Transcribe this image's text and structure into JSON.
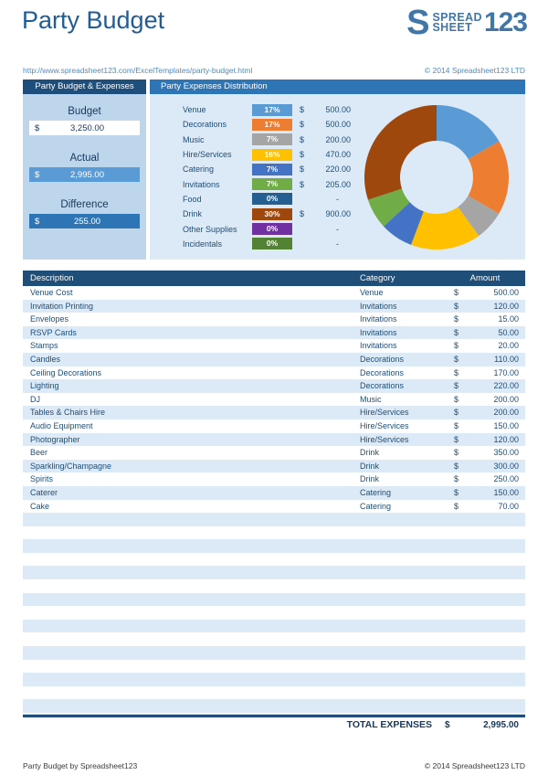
{
  "header": {
    "title": "Party Budget",
    "logo": {
      "s": "S",
      "line1": "SPREAD",
      "line2": "SHEET",
      "numbers": "123"
    }
  },
  "urlbar": {
    "url": "http://www.spreadsheet123.com/ExcelTemplates/party-budget.html",
    "copyright": "© 2014 Spreadsheet123 LTD"
  },
  "summary": {
    "tab_label": "Party Budget & Expenses",
    "budget": {
      "label": "Budget",
      "currency": "$",
      "value": "3,250.00"
    },
    "actual": {
      "label": "Actual",
      "currency": "$",
      "value": "2,995.00"
    },
    "difference": {
      "label": "Difference",
      "currency": "$",
      "value": "255.00"
    }
  },
  "distribution": {
    "tab_label": "Party Expenses Distribution",
    "rows": [
      {
        "label": "Venue",
        "percent": "17%",
        "color": "#5B9BD5",
        "currency": "$",
        "amount": "500.00"
      },
      {
        "label": "Decorations",
        "percent": "17%",
        "color": "#ED7D31",
        "currency": "$",
        "amount": "500.00"
      },
      {
        "label": "Music",
        "percent": "7%",
        "color": "#A5A5A5",
        "currency": "$",
        "amount": "200.00"
      },
      {
        "label": "Hire/Services",
        "percent": "16%",
        "color": "#FFC000",
        "currency": "$",
        "amount": "470.00"
      },
      {
        "label": "Catering",
        "percent": "7%",
        "color": "#4472C4",
        "currency": "$",
        "amount": "220.00"
      },
      {
        "label": "Invitations",
        "percent": "7%",
        "color": "#70AD47",
        "currency": "$",
        "amount": "205.00"
      },
      {
        "label": "Food",
        "percent": "0%",
        "color": "#255E91",
        "currency": "",
        "amount": "-"
      },
      {
        "label": "Drink",
        "percent": "30%",
        "color": "#9E480E",
        "currency": "$",
        "amount": "900.00"
      },
      {
        "label": "Other Supplies",
        "percent": "0%",
        "color": "#7030A0",
        "currency": "",
        "amount": "-"
      },
      {
        "label": "Incidentals",
        "percent": "0%",
        "color": "#548235",
        "currency": "",
        "amount": "-"
      }
    ]
  },
  "chart_data": {
    "type": "pie",
    "subtype": "donut",
    "title": "Party Expenses Distribution",
    "legend": "none",
    "categories": [
      "Venue",
      "Decorations",
      "Music",
      "Hire/Services",
      "Catering",
      "Invitations",
      "Food",
      "Drink",
      "Other Supplies",
      "Incidentals"
    ],
    "values": [
      500,
      500,
      200,
      470,
      220,
      205,
      0,
      900,
      0,
      0
    ],
    "percents": [
      17,
      17,
      7,
      16,
      7,
      7,
      0,
      30,
      0,
      0
    ],
    "colors": [
      "#5B9BD5",
      "#ED7D31",
      "#A5A5A5",
      "#FFC000",
      "#4472C4",
      "#70AD47",
      "#255E91",
      "#9E480E",
      "#7030A0",
      "#548235"
    ],
    "start_angle_deg": 0,
    "direction": "clockwise"
  },
  "expense_table": {
    "columns": [
      "Description",
      "Category",
      "Amount"
    ],
    "rows": [
      {
        "description": "Venue Cost",
        "category": "Venue",
        "currency": "$",
        "amount": "500.00"
      },
      {
        "description": "Invitation Printing",
        "category": "Invitations",
        "currency": "$",
        "amount": "120.00"
      },
      {
        "description": "Envelopes",
        "category": "Invitations",
        "currency": "$",
        "amount": "15.00"
      },
      {
        "description": "RSVP Cards",
        "category": "Invitations",
        "currency": "$",
        "amount": "50.00"
      },
      {
        "description": "Stamps",
        "category": "Invitations",
        "currency": "$",
        "amount": "20.00"
      },
      {
        "description": "Candles",
        "category": "Decorations",
        "currency": "$",
        "amount": "110.00"
      },
      {
        "description": "Ceiling Decorations",
        "category": "Decorations",
        "currency": "$",
        "amount": "170.00"
      },
      {
        "description": "Lighting",
        "category": "Decorations",
        "currency": "$",
        "amount": "220.00"
      },
      {
        "description": "DJ",
        "category": "Music",
        "currency": "$",
        "amount": "200.00"
      },
      {
        "description": "Tables & Chairs Hire",
        "category": "Hire/Services",
        "currency": "$",
        "amount": "200.00"
      },
      {
        "description": "Audio Equipment",
        "category": "Hire/Services",
        "currency": "$",
        "amount": "150.00"
      },
      {
        "description": "Photographer",
        "category": "Hire/Services",
        "currency": "$",
        "amount": "120.00"
      },
      {
        "description": "Beer",
        "category": "Drink",
        "currency": "$",
        "amount": "350.00"
      },
      {
        "description": "Sparkling/Champagne",
        "category": "Drink",
        "currency": "$",
        "amount": "300.00"
      },
      {
        "description": "Spirits",
        "category": "Drink",
        "currency": "$",
        "amount": "250.00"
      },
      {
        "description": "Caterer",
        "category": "Catering",
        "currency": "$",
        "amount": "150.00"
      },
      {
        "description": "Cake",
        "category": "Catering",
        "currency": "$",
        "amount": "70.00"
      }
    ],
    "empty_row_count": 15,
    "total": {
      "label": "TOTAL EXPENSES",
      "currency": "$",
      "amount": "2,995.00"
    }
  },
  "footer": {
    "left": "Party Budget by Spreadsheet123",
    "right": "© 2014 Spreadsheet123 LTD"
  }
}
